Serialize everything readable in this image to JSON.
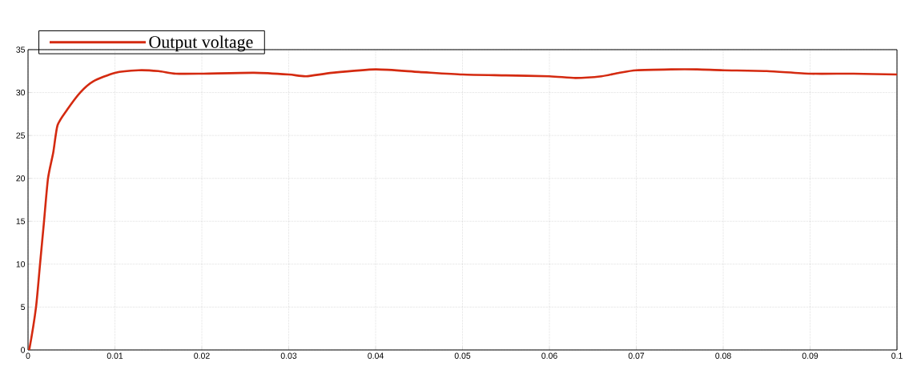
{
  "chart_data": {
    "type": "line",
    "x": [
      0,
      0.00015,
      0.00092,
      0.00138,
      0.00184,
      0.0023,
      0.0029,
      0.0034,
      0.0045,
      0.006,
      0.0075,
      0.01,
      0.0127,
      0.015,
      0.017,
      0.02,
      0.026,
      0.03,
      0.032,
      0.035,
      0.04,
      0.045,
      0.05,
      0.055,
      0.06,
      0.063,
      0.066,
      0.068,
      0.07,
      0.074,
      0.077,
      0.08,
      0.085,
      0.09,
      0.095,
      0.1
    ],
    "series": [
      {
        "name": "Output voltage",
        "color": "#d42a10",
        "values": [
          0,
          0.1,
          5,
          10,
          15,
          20,
          23,
          26.2,
          28,
          30,
          31.3,
          32.3,
          32.6,
          32.5,
          32.2,
          32.2,
          32.3,
          32.1,
          31.9,
          32.3,
          32.7,
          32.4,
          32.1,
          32,
          31.9,
          31.7,
          31.9,
          32.3,
          32.6,
          32.7,
          32.7,
          32.6,
          32.5,
          32.2,
          32.2,
          32.1
        ]
      }
    ],
    "xlim": [
      0,
      0.1
    ],
    "ylim": [
      0,
      35
    ],
    "xticks": [
      0,
      0.01,
      0.02,
      0.03,
      0.04,
      0.05,
      0.06,
      0.07,
      0.08,
      0.09,
      0.1
    ],
    "yticks": [
      0,
      5,
      10,
      15,
      20,
      25,
      30,
      35
    ],
    "grid": true,
    "legend": "top left",
    "marker": "none",
    "line_style": "solid"
  }
}
